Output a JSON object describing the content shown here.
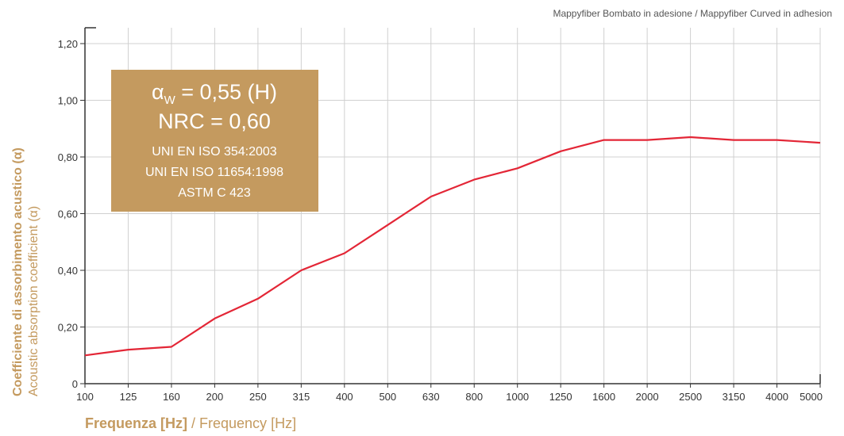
{
  "chart_data": {
    "type": "line",
    "title": "Mappyfiber Bombato in adesione / Mappyfiber Curved in adhesion",
    "ylabel_primary": "Coefficiente di assorbimento acustico (α)",
    "ylabel_secondary": "Acoustic absorption coefficient (α)",
    "xlabel_primary": "Frequenza [Hz]",
    "xlabel_secondary": " / Frequency [Hz]",
    "categories": [
      "100",
      "125",
      "160",
      "200",
      "250",
      "315",
      "400",
      "500",
      "630",
      "800",
      "1000",
      "1250",
      "1600",
      "2000",
      "2500",
      "3150",
      "4000",
      "5000"
    ],
    "y_ticks": [
      "0",
      "0,20",
      "0,40",
      "0,60",
      "0,80",
      "1,00",
      "1,20"
    ],
    "ylim": [
      0,
      1.2
    ],
    "grid": true,
    "series": [
      {
        "values": [
          0.1,
          0.12,
          0.13,
          0.23,
          0.3,
          0.4,
          0.46,
          0.56,
          0.66,
          0.72,
          0.76,
          0.82,
          0.86,
          0.86,
          0.87,
          0.86,
          0.86,
          0.85
        ]
      }
    ],
    "annotation_box": {
      "lines": [
        "αW = 0,55 (H)",
        "NRC = 0,60",
        "UNI EN ISO 354:2003",
        "UNI EN ISO 11654:1998",
        "ASTM C 423"
      ],
      "alpha_symbol": "α",
      "alpha_subscript": "W",
      "alpha_rest": " = 0,55 (H)"
    },
    "colors": {
      "line": "#e32636",
      "box": "#c49a5f",
      "grid": "#d0d0d0",
      "axis": "#333333",
      "label": "#c49a5f"
    }
  }
}
